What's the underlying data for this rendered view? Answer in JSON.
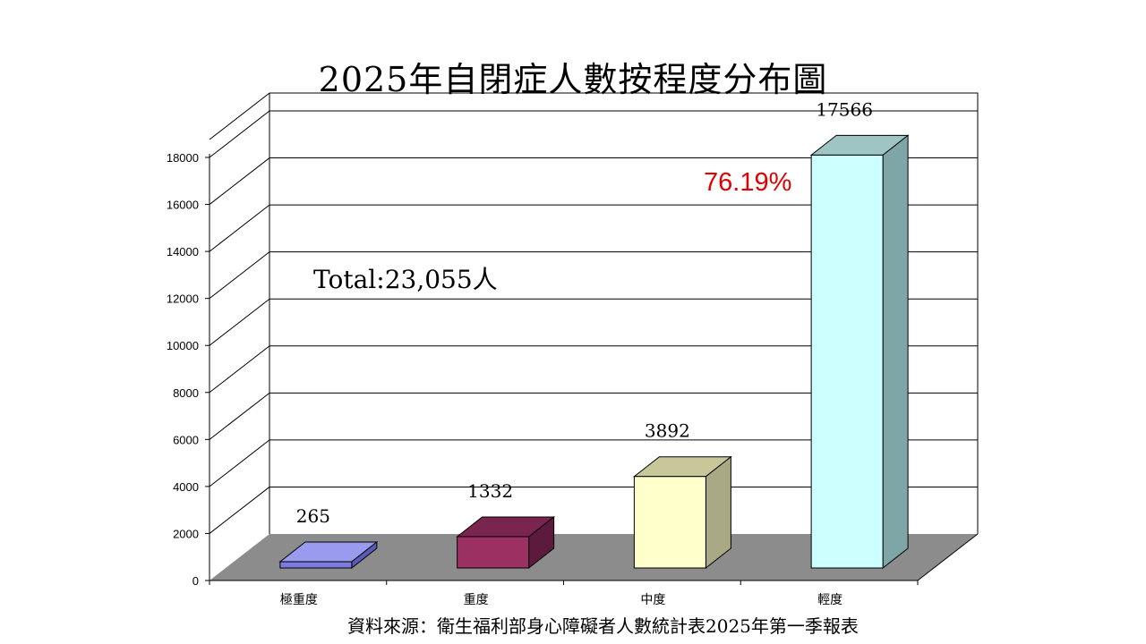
{
  "title": "2025年自閉症人數按程度分布圖",
  "source_note": "資料來源：衛生福利部身心障礙者人數統計表2025年第一季報表",
  "annotations": {
    "total": "Total:23,055人",
    "percent": "76.19%"
  },
  "colors": {
    "grid": "#000000",
    "floor": "#8c8c8c",
    "percent_text": "#e00000"
  },
  "chart_data": {
    "type": "bar",
    "title": "2025年自閉症人數按程度分布圖",
    "categories": [
      "極重度",
      "重度",
      "中度",
      "輕度"
    ],
    "values": [
      265,
      1332,
      3892,
      17566
    ],
    "data_labels": [
      "265",
      "1332",
      "3892",
      "17566"
    ],
    "ylim": [
      0,
      18000
    ],
    "yticks": [
      "0",
      "2000",
      "4000",
      "6000",
      "8000",
      "10000",
      "12000",
      "14000",
      "16000",
      "18000"
    ],
    "grid": true,
    "style": "3d",
    "bar_colors": [
      {
        "front": "#7b7be0",
        "top": "#9a9aee",
        "side": "#5a5ab8"
      },
      {
        "front": "#9b3163",
        "top": "#7a2450",
        "side": "#5c1a3c"
      },
      {
        "front": "#ffffcc",
        "top": "#c7c79a",
        "side": "#a9a986"
      },
      {
        "front": "#ccffff",
        "top": "#9ec4c4",
        "side": "#7fa6a6"
      }
    ]
  }
}
